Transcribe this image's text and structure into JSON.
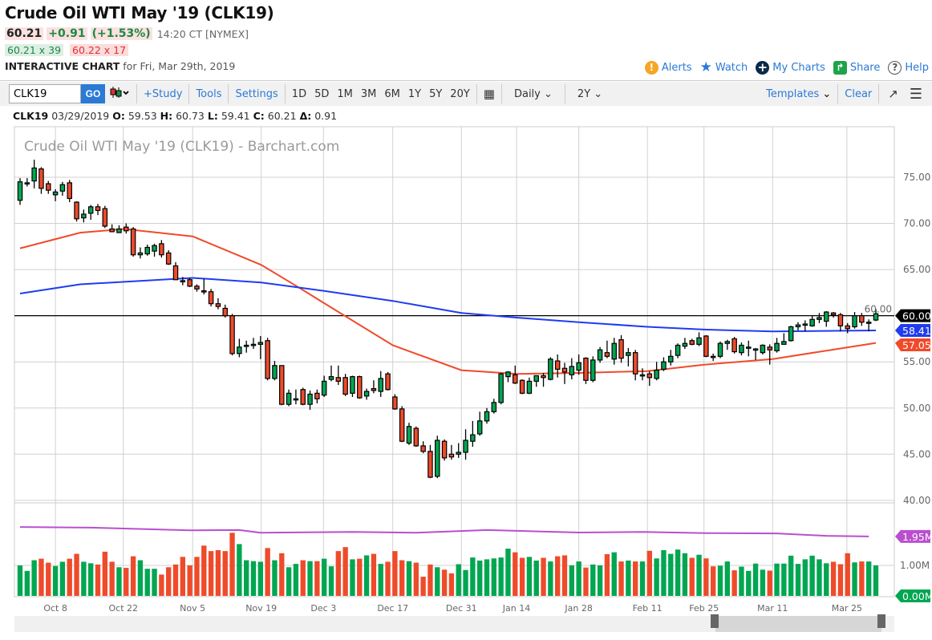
{
  "header": {
    "title": "Crude Oil WTI May '19 (CLK19)",
    "last": "60.21",
    "change": "+0.91",
    "change_pct": "(+1.53%)",
    "time": "14:20 CT [NYMEX]",
    "bid": "60.21 x 39",
    "ask": "60.22 x 17",
    "chart_label": "INTERACTIVE CHART",
    "chart_date": "for Fri, Mar 29th, 2019"
  },
  "actions": {
    "alerts": "Alerts",
    "watch": "Watch",
    "my_charts": "My Charts",
    "share": "Share",
    "help": "Help"
  },
  "toolbar": {
    "symbol": "CLK19",
    "go": "GO",
    "study": "+Study",
    "tools": "Tools",
    "settings": "Settings",
    "periods": [
      "1D",
      "5D",
      "1M",
      "3M",
      "6M",
      "1Y",
      "5Y",
      "20Y"
    ],
    "interval": "Daily",
    "range": "2Y",
    "templates": "Templates",
    "clear": "Clear"
  },
  "ohlc": {
    "symbol": "CLK19",
    "date": "03/29/2019",
    "o_label": "O:",
    "o": "59.53",
    "h_label": "H:",
    "h": "60.73",
    "l_label": "L:",
    "l": "59.41",
    "c_label": "C:",
    "c": "60.21",
    "d_label": "Δ:",
    "d": "0.91"
  },
  "colors": {
    "up": "#00a651",
    "down": "#ee4b2b",
    "ma_fast": "#f04a2a",
    "ma_slow": "#1f3cf0",
    "vol_ma": "#b94fcf",
    "accent": "#2a7ad6"
  },
  "chart_data": {
    "type": "candlestick",
    "title": "Crude Oil WTI May '19 (CLK19) - Barchart.com",
    "ylim": [
      40,
      80
    ],
    "y_ticks": [
      "75.00",
      "70.00",
      "65.00",
      "60.00",
      "55.00",
      "50.00",
      "45.00",
      "40.00"
    ],
    "x_ticks": [
      {
        "label": "Oct 8",
        "index": 5
      },
      {
        "label": "Oct 22",
        "index": 14.6
      },
      {
        "label": "Nov 5",
        "index": 24.4
      },
      {
        "label": "Nov 19",
        "index": 34.1
      },
      {
        "label": "Dec 3",
        "index": 42.9
      },
      {
        "label": "Dec 17",
        "index": 52.7
      },
      {
        "label": "Dec 31",
        "index": 62.4
      },
      {
        "label": "Jan 14",
        "index": 70.2
      },
      {
        "label": "Jan 28",
        "index": 79
      },
      {
        "label": "Feb 11",
        "index": 88.7
      },
      {
        "label": "Feb 25",
        "index": 96.7
      },
      {
        "label": "Mar 11",
        "index": 106.4
      },
      {
        "label": "Mar 25",
        "index": 116.9
      }
    ],
    "reference_line": 60.0,
    "badges": [
      {
        "label": "60.00",
        "value": 60.0,
        "color": "#000000"
      },
      {
        "label": "58.41",
        "value": 58.41,
        "color": "#1f3cf0"
      },
      {
        "label": "57.05",
        "value": 57.05,
        "color": "#f04a2a"
      }
    ],
    "ohlc": [
      [
        72.5,
        74.9,
        72.0,
        74.5
      ],
      [
        74.3,
        74.9,
        74.0,
        74.4
      ],
      [
        74.6,
        76.9,
        73.8,
        76.0
      ],
      [
        75.9,
        76.1,
        73.2,
        73.8
      ],
      [
        74.3,
        74.6,
        73.2,
        73.6
      ],
      [
        73.1,
        73.7,
        72.4,
        73.4
      ],
      [
        73.5,
        74.5,
        73.0,
        74.2
      ],
      [
        74.4,
        74.7,
        72.3,
        72.7
      ],
      [
        72.3,
        72.4,
        70.2,
        70.5
      ],
      [
        70.6,
        71.5,
        70.1,
        71.0
      ],
      [
        71.1,
        72.0,
        70.4,
        71.8
      ],
      [
        71.8,
        72.1,
        70.9,
        71.4
      ],
      [
        71.6,
        71.9,
        69.5,
        69.7
      ],
      [
        69.4,
        69.9,
        69.1,
        69.1
      ],
      [
        69.0,
        69.8,
        69.0,
        69.4
      ],
      [
        69.6,
        70.0,
        68.9,
        69.2
      ],
      [
        69.4,
        69.6,
        66.4,
        66.6
      ],
      [
        66.6,
        67.4,
        66.2,
        66.8
      ],
      [
        66.7,
        67.7,
        66.5,
        67.4
      ],
      [
        67.0,
        67.8,
        66.4,
        67.6
      ],
      [
        67.8,
        68.2,
        66.3,
        66.6
      ],
      [
        66.8,
        67.1,
        65.5,
        65.6
      ],
      [
        65.4,
        65.8,
        63.9,
        63.9
      ],
      [
        63.8,
        64.2,
        63.3,
        63.7
      ],
      [
        63.9,
        64.1,
        63.1,
        63.2
      ],
      [
        63.2,
        63.4,
        62.6,
        62.9
      ],
      [
        62.7,
        64.0,
        62.3,
        62.6
      ],
      [
        62.6,
        62.9,
        61.0,
        61.3
      ],
      [
        61.3,
        61.9,
        60.7,
        61.0
      ],
      [
        60.8,
        61.2,
        59.8,
        60.0
      ],
      [
        60.0,
        60.2,
        55.7,
        55.9
      ],
      [
        55.9,
        57.5,
        55.5,
        56.6
      ],
      [
        56.7,
        57.3,
        56.0,
        56.8
      ],
      [
        56.8,
        57.6,
        56.4,
        56.9
      ],
      [
        56.9,
        57.8,
        55.3,
        57.1
      ],
      [
        57.3,
        57.6,
        53.0,
        53.2
      ],
      [
        53.2,
        55.1,
        53.0,
        54.6
      ],
      [
        54.6,
        54.6,
        50.3,
        50.4
      ],
      [
        50.4,
        52.0,
        50.2,
        51.6
      ],
      [
        51.0,
        52.0,
        50.4,
        51.0
      ],
      [
        52.0,
        52.2,
        50.3,
        50.4
      ],
      [
        50.4,
        51.9,
        49.8,
        51.5
      ],
      [
        51.6,
        52.0,
        50.5,
        51.0
      ],
      [
        51.4,
        53.5,
        51.2,
        52.9
      ],
      [
        53.1,
        54.6,
        52.9,
        53.4
      ],
      [
        53.3,
        54.6,
        52.5,
        52.9
      ],
      [
        53.3,
        53.7,
        51.3,
        51.5
      ],
      [
        51.6,
        53.5,
        51.2,
        53.4
      ],
      [
        53.4,
        53.5,
        51.0,
        51.1
      ],
      [
        51.3,
        52.1,
        50.9,
        51.8
      ],
      [
        52.1,
        53.0,
        51.6,
        51.9
      ],
      [
        51.8,
        54.0,
        51.2,
        53.2
      ],
      [
        53.7,
        53.9,
        51.9,
        52.0
      ],
      [
        51.2,
        51.5,
        49.8,
        49.9
      ],
      [
        49.9,
        50.2,
        46.3,
        46.4
      ],
      [
        46.2,
        48.4,
        46.0,
        48.0
      ],
      [
        47.8,
        48.0,
        45.8,
        45.9
      ],
      [
        45.9,
        46.4,
        45.1,
        45.3
      ],
      [
        45.3,
        46.0,
        42.4,
        42.5
      ],
      [
        42.6,
        47.0,
        42.4,
        46.5
      ],
      [
        46.4,
        46.6,
        44.3,
        44.6
      ],
      [
        45.0,
        46.0,
        44.4,
        44.7
      ],
      [
        45.0,
        46.2,
        44.6,
        45.2
      ],
      [
        45.2,
        47.7,
        44.4,
        46.5
      ],
      [
        46.4,
        48.6,
        45.8,
        47.1
      ],
      [
        47.2,
        49.6,
        47.0,
        48.6
      ],
      [
        48.6,
        50.0,
        48.3,
        49.6
      ],
      [
        49.6,
        51.0,
        49.4,
        50.6
      ],
      [
        50.6,
        53.8,
        50.4,
        53.7
      ],
      [
        53.4,
        54.0,
        52.8,
        53.9
      ],
      [
        53.6,
        54.6,
        52.6,
        52.7
      ],
      [
        53.0,
        53.1,
        51.5,
        51.6
      ],
      [
        51.6,
        53.3,
        51.5,
        52.9
      ],
      [
        52.9,
        53.5,
        52.3,
        53.5
      ],
      [
        53.5,
        53.8,
        52.3,
        53.3
      ],
      [
        53.1,
        55.5,
        53.0,
        55.3
      ],
      [
        55.1,
        55.8,
        53.3,
        54.2
      ],
      [
        54.3,
        54.9,
        52.6,
        53.9
      ],
      [
        53.6,
        55.4,
        53.1,
        54.5
      ],
      [
        54.1,
        55.8,
        53.6,
        54.9
      ],
      [
        55.4,
        55.5,
        52.6,
        53.0
      ],
      [
        53.0,
        55.6,
        52.8,
        55.2
      ],
      [
        55.2,
        56.6,
        54.9,
        56.3
      ],
      [
        56.0,
        57.3,
        55.4,
        55.6
      ],
      [
        55.3,
        57.6,
        54.7,
        57.0
      ],
      [
        57.4,
        57.9,
        54.9,
        55.4
      ],
      [
        55.7,
        56.5,
        54.5,
        56.0
      ],
      [
        56.0,
        56.3,
        53.0,
        53.7
      ],
      [
        53.6,
        54.3,
        53.0,
        53.6
      ],
      [
        53.7,
        54.0,
        52.4,
        53.3
      ],
      [
        53.2,
        55.0,
        53.0,
        54.1
      ],
      [
        54.2,
        55.5,
        54.0,
        55.0
      ],
      [
        55.0,
        56.3,
        54.6,
        55.6
      ],
      [
        55.7,
        57.0,
        55.4,
        56.8
      ],
      [
        56.7,
        57.6,
        56.4,
        57.0
      ],
      [
        57.3,
        57.5,
        56.8,
        56.9
      ],
      [
        56.9,
        58.2,
        56.7,
        57.6
      ],
      [
        57.8,
        57.9,
        55.5,
        55.6
      ],
      [
        55.6,
        55.9,
        55.1,
        55.5
      ],
      [
        55.6,
        57.2,
        55.4,
        57.0
      ],
      [
        57.0,
        57.4,
        56.3,
        57.2
      ],
      [
        57.5,
        57.7,
        55.9,
        56.1
      ],
      [
        56.0,
        57.1,
        55.7,
        56.8
      ],
      [
        56.5,
        57.3,
        55.6,
        56.6
      ],
      [
        56.4,
        56.5,
        55.2,
        56.4
      ],
      [
        56.0,
        56.9,
        55.8,
        56.8
      ],
      [
        56.6,
        56.9,
        54.7,
        56.3
      ],
      [
        56.2,
        57.6,
        56.0,
        57.0
      ],
      [
        56.9,
        58.1,
        56.9,
        57.2
      ],
      [
        57.3,
        58.9,
        57.2,
        58.8
      ],
      [
        58.8,
        59.3,
        58.4,
        59.0
      ],
      [
        59.0,
        59.5,
        58.3,
        59.1
      ],
      [
        58.9,
        60.0,
        58.8,
        59.6
      ],
      [
        59.6,
        60.3,
        59.2,
        59.8
      ],
      [
        59.4,
        60.5,
        58.8,
        60.4
      ],
      [
        60.3,
        60.4,
        59.8,
        60.1
      ],
      [
        60.1,
        60.3,
        58.3,
        58.9
      ],
      [
        58.9,
        59.2,
        58.1,
        58.6
      ],
      [
        58.8,
        60.4,
        58.6,
        60.0
      ],
      [
        60.0,
        60.3,
        58.9,
        59.3
      ],
      [
        59.2,
        59.6,
        58.3,
        59.3
      ],
      [
        59.53,
        60.73,
        59.41,
        60.21
      ]
    ],
    "ma_fast": [
      [
        0,
        67.3
      ],
      [
        8.5,
        69.0
      ],
      [
        14.7,
        69.4
      ],
      [
        24.4,
        68.6
      ],
      [
        34.1,
        65.5
      ],
      [
        39.1,
        63.2
      ],
      [
        42.9,
        61.4
      ],
      [
        52.7,
        56.8
      ],
      [
        62.4,
        54.1
      ],
      [
        70.2,
        53.7
      ],
      [
        79,
        53.8
      ],
      [
        88.7,
        54.0
      ],
      [
        96.7,
        54.7
      ],
      [
        106.4,
        55.3
      ],
      [
        121,
        57.05
      ]
    ],
    "ma_slow": [
      [
        0,
        62.4
      ],
      [
        8.5,
        63.4
      ],
      [
        24.4,
        64.1
      ],
      [
        34.1,
        63.6
      ],
      [
        42.9,
        62.7
      ],
      [
        52.7,
        61.6
      ],
      [
        62.4,
        60.3
      ],
      [
        70.2,
        59.8
      ],
      [
        79,
        59.3
      ],
      [
        88.7,
        58.8
      ],
      [
        96.7,
        58.5
      ],
      [
        106.4,
        58.3
      ],
      [
        121,
        58.41
      ]
    ],
    "volume": {
      "unit": "M",
      "ticks": [
        "1.00M"
      ],
      "badges": [
        {
          "label": "1.95M",
          "value": 1.95,
          "color": "#b94fcf"
        },
        {
          "label": "0.00M",
          "value": 0,
          "color": "#00a651"
        }
      ],
      "values": [
        1.0,
        0.82,
        1.17,
        1.22,
        1.09,
        0.98,
        1.12,
        1.22,
        1.38,
        1.12,
        1.07,
        1.03,
        1.45,
        1.12,
        0.94,
        0.92,
        1.3,
        1.17,
        0.89,
        0.89,
        0.7,
        0.94,
        1.03,
        1.28,
        1.0,
        1.28,
        1.65,
        1.47,
        1.5,
        1.47,
        2.07,
        1.7,
        1.17,
        1.14,
        1.12,
        1.57,
        1.17,
        1.4,
        0.94,
        1.05,
        1.17,
        1.14,
        1.14,
        1.22,
        0.97,
        1.47,
        1.6,
        1.2,
        1.22,
        1.33,
        1.38,
        1.05,
        1.12,
        1.47,
        1.17,
        1.14,
        1.09,
        0.63,
        1.03,
        0.94,
        0.86,
        0.74,
        1.04,
        0.85,
        1.26,
        1.16,
        1.2,
        1.23,
        1.26,
        1.55,
        1.43,
        1.25,
        1.28,
        1.16,
        1.25,
        1.13,
        1.3,
        1.33,
        1.0,
        1.13,
        0.93,
        1.03,
        1.0,
        1.37,
        1.43,
        1.13,
        1.16,
        1.13,
        1.13,
        1.48,
        1.23,
        1.5,
        1.38,
        1.52,
        1.4,
        1.25,
        1.35,
        1.23,
        0.97,
        0.99,
        1.13,
        0.84,
        0.96,
        0.82,
        1.06,
        0.86,
        0.83,
        1.06,
        1.06,
        1.32,
        1.05,
        1.2,
        1.32,
        1.2,
        1.07,
        1.12,
        1.04,
        1.4,
        1.1,
        1.13,
        1.13,
        1.0
      ],
      "ma": [
        [
          0,
          2.26
        ],
        [
          10,
          2.24
        ],
        [
          24,
          2.15
        ],
        [
          31,
          2.16
        ],
        [
          34,
          2.07
        ],
        [
          47,
          2.1
        ],
        [
          56,
          2.07
        ],
        [
          66,
          2.16
        ],
        [
          79,
          2.08
        ],
        [
          88,
          2.1
        ],
        [
          97,
          2.06
        ],
        [
          107,
          2.05
        ],
        [
          114,
          1.97
        ],
        [
          120,
          1.95
        ]
      ]
    }
  }
}
